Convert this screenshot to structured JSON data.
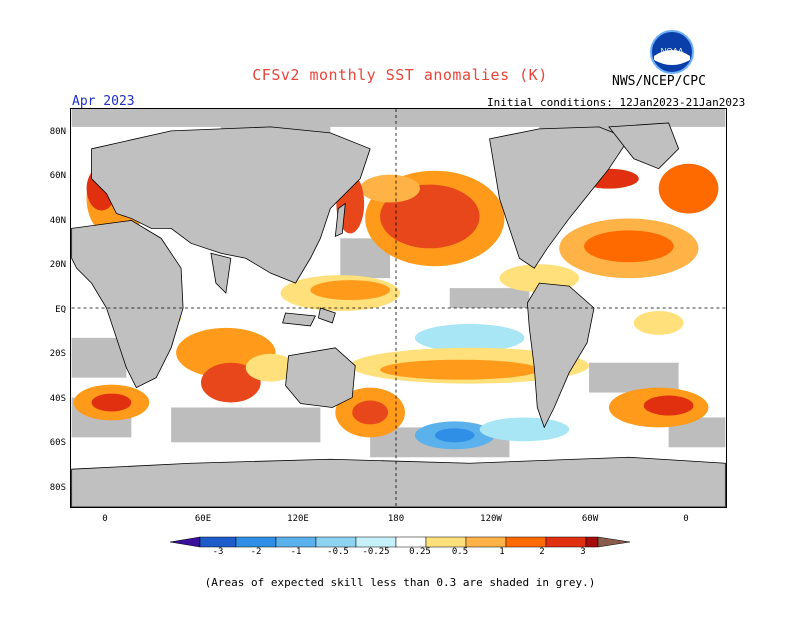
{
  "header": {
    "title": "CFSv2 monthly SST anomalies (K)",
    "agency": "NWS/NCEP/CPC",
    "logo_text": "NOAA",
    "month": "Apr 2023",
    "initial_conditions": "Initial conditions: 12Jan2023-21Jan2023"
  },
  "axes": {
    "lat_labels": [
      "80N",
      "60N",
      "40N",
      "20N",
      "EQ",
      "20S",
      "40S",
      "60S",
      "80S"
    ],
    "lon_labels": [
      "0",
      "60E",
      "120E",
      "180",
      "120W",
      "60W",
      "0"
    ]
  },
  "colorbar": {
    "labels": [
      "-3",
      "-2",
      "-1",
      "-0.5",
      "-0.25",
      "0.25",
      "0.5",
      "1",
      "2",
      "3"
    ],
    "colors": [
      "#3a0f9c",
      "#1e5ccc",
      "#2f8fe6",
      "#5ab1ec",
      "#a8e6f6",
      "#ffffff",
      "#ffe07a",
      "#ffb347",
      "#ff6a00",
      "#e03010",
      "#a50c0c",
      "#6b1a1a",
      "#8a5a4a"
    ]
  },
  "footnote": "(Areas of expected skill less than 0.3 are shaded in grey.)",
  "colors": {
    "land": "#c0c0c0",
    "ocean": "#ffffff",
    "title": "#e8443a",
    "month": "#2030c8"
  }
}
